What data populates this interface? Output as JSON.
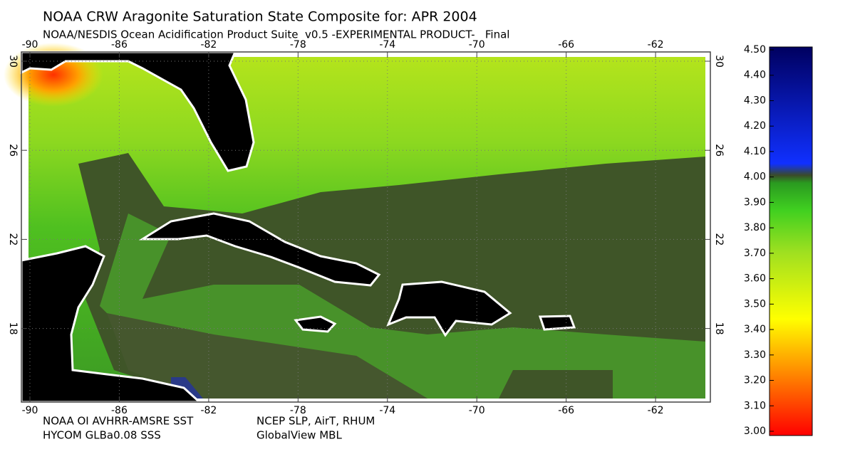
{
  "header": {
    "title": "NOAA CRW Aragonite Saturation State Composite for: APR 2004",
    "subtitle": "NOAA/NESDIS Ocean Acidification Product Suite  v0.5 -EXPERIMENTAL PRODUCT-   Final"
  },
  "map": {
    "lon_ticks": [
      -90,
      -86,
      -82,
      -78,
      -74,
      -70,
      -66,
      -62
    ],
    "lat_ticks": [
      30,
      26,
      22,
      18
    ]
  },
  "colorbar": {
    "ticks": [
      {
        "value": 3,
        "label": "3.00"
      },
      {
        "value": 3.1,
        "label": "3.10"
      },
      {
        "value": 3.2,
        "label": "3.20"
      },
      {
        "value": 3.3,
        "label": "3.30"
      },
      {
        "value": 3.4,
        "label": "3.40"
      },
      {
        "value": 3.5,
        "label": "3.50"
      },
      {
        "value": 3.6,
        "label": "3.60"
      },
      {
        "value": 3.7,
        "label": "3.70"
      },
      {
        "value": 3.8,
        "label": "3.80"
      },
      {
        "value": 3.9,
        "label": "3.90"
      },
      {
        "value": 4,
        "label": "4.00"
      },
      {
        "value": 4.1,
        "label": "4.10"
      },
      {
        "value": 4.2,
        "label": "4.20"
      },
      {
        "value": 4.3,
        "label": "4.30"
      },
      {
        "value": 4.4,
        "label": "4.40"
      },
      {
        "value": 4.5,
        "label": "4.50"
      }
    ]
  },
  "footer": {
    "sources": [
      "NOAA OI AVHRR-AMSRE SST",
      "HYCOM GLBa0.08 SSS",
      "NCEP SLP, AirT, RHUM",
      "GlobalView MBL"
    ]
  }
}
